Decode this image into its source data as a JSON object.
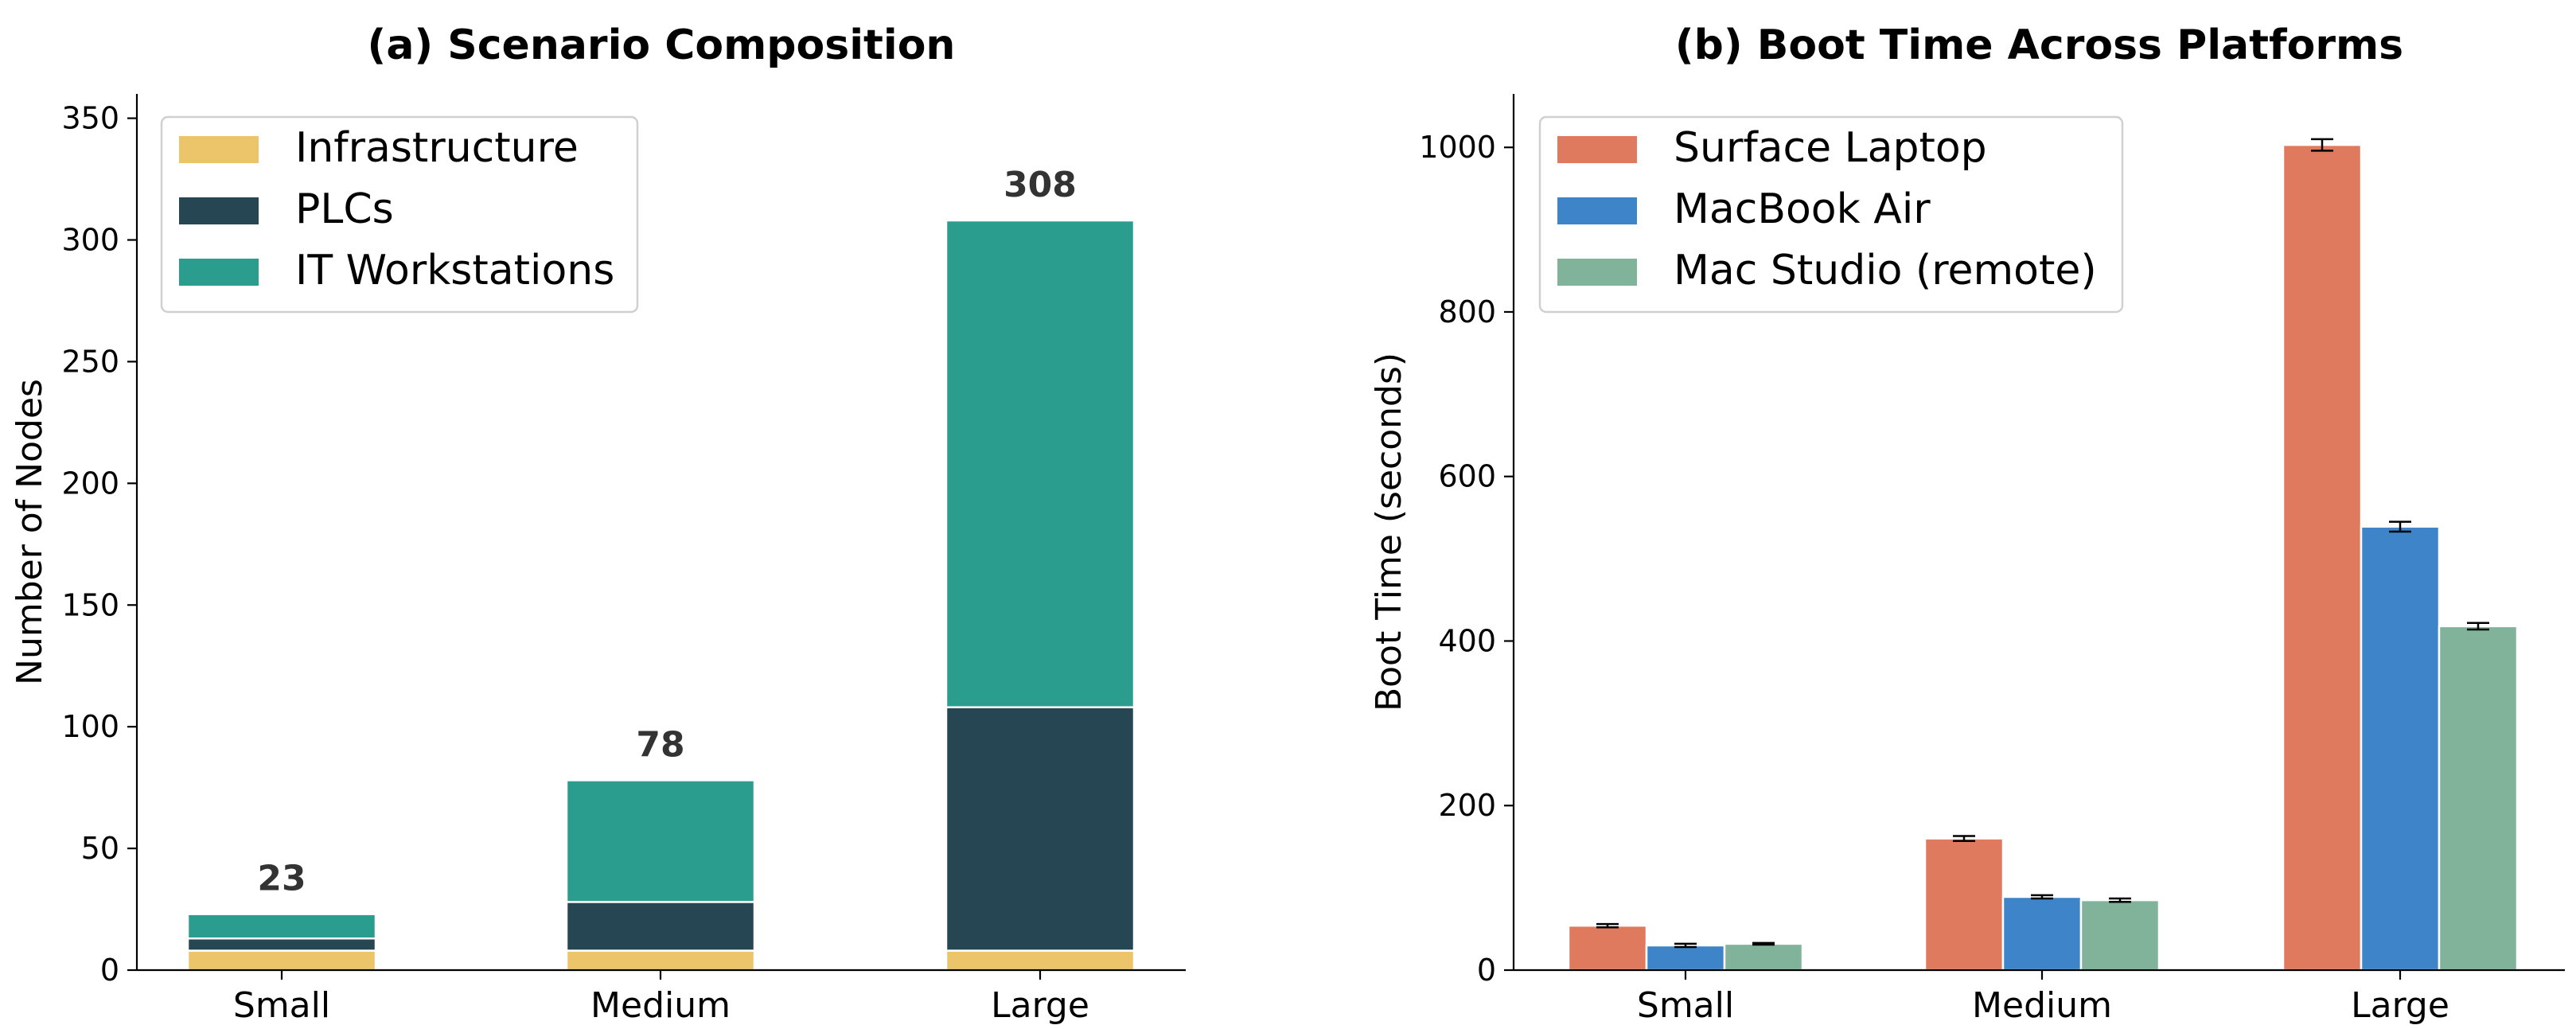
{
  "chart_data": [
    {
      "type": "bar",
      "stacked": true,
      "title": "(a) Scenario Composition",
      "xlabel": "",
      "ylabel": "Number of Nodes",
      "categories": [
        "Small",
        "Medium",
        "Large"
      ],
      "series": [
        {
          "name": "Infrastructure",
          "values": [
            8,
            8,
            8
          ],
          "color": "#ECC46A"
        },
        {
          "name": "PLCs",
          "values": [
            5,
            20,
            100
          ],
          "color": "#264653"
        },
        {
          "name": "IT Workstations",
          "values": [
            10,
            50,
            200
          ],
          "color": "#2A9D8F"
        }
      ],
      "totals": [
        "23",
        "78",
        "308"
      ],
      "ylim": [
        0,
        360
      ],
      "yticks": [
        0,
        50,
        100,
        150,
        200,
        250,
        300,
        350
      ],
      "legend": "top-left",
      "grid": false
    },
    {
      "type": "bar",
      "grouped": true,
      "title": "(b) Boot Time Across Platforms",
      "xlabel": "",
      "ylabel": "Boot Time (seconds)",
      "categories": [
        "Small",
        "Medium",
        "Large"
      ],
      "series": [
        {
          "name": "Surface Laptop",
          "values": [
            54,
            160,
            1003
          ],
          "errors": [
            2,
            3,
            7
          ],
          "color": "#E07A5F"
        },
        {
          "name": "MacBook Air",
          "values": [
            30,
            89,
            539
          ],
          "errors": [
            2,
            2,
            6
          ],
          "color": "#3D85C8"
        },
        {
          "name": "Mac Studio (remote)",
          "values": [
            32,
            85,
            418
          ],
          "errors": [
            1,
            2,
            4
          ],
          "color": "#81B29A"
        }
      ],
      "ylim": [
        0,
        1065
      ],
      "yticks": [
        0,
        200,
        400,
        600,
        800,
        1000
      ],
      "legend": "top-left",
      "grid": false
    }
  ]
}
